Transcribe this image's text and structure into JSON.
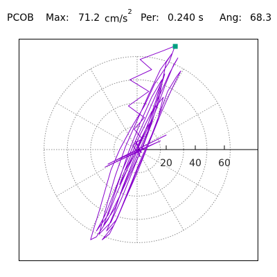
{
  "header": {
    "station": "PCOB",
    "max_label": "Max:",
    "max_value": "71.2",
    "max_unit_base": "cm/s",
    "max_unit_exp": "2",
    "per_label": "Per:",
    "per_value": "0.240 s",
    "ang_label": "Ang:",
    "ang_value": "68.3"
  },
  "chart_data": {
    "type": "scatter",
    "subtype": "polar particle-motion orbit",
    "title": "",
    "r_ticks": [
      20,
      40,
      60
    ],
    "r_tick_labels": [
      "20",
      "40",
      "60"
    ],
    "r_max": 80,
    "spoke_angles_deg": [
      0,
      30,
      60,
      90,
      120,
      150,
      180,
      210,
      240,
      270,
      300,
      330
    ],
    "grid": true,
    "peak_marker": {
      "x": 26,
      "y": 71.2,
      "color": "#00a080"
    },
    "colors": {
      "trace": "#8800cc",
      "grid": "#888888",
      "axis": "#000000"
    },
    "series": [
      {
        "color": "#8800cc",
        "points": [
          [
            0,
            0
          ],
          [
            3,
            8
          ],
          [
            -2,
            14
          ],
          [
            5,
            22
          ],
          [
            -6,
            30
          ],
          [
            8,
            40
          ],
          [
            -5,
            48
          ],
          [
            10,
            55
          ],
          [
            2,
            62
          ],
          [
            18,
            68
          ],
          [
            26,
            71.2
          ],
          [
            22,
            60
          ],
          [
            12,
            45
          ],
          [
            5,
            30
          ],
          [
            -4,
            15
          ],
          [
            -12,
            0
          ],
          [
            -18,
            -14
          ],
          [
            -22,
            -28
          ],
          [
            -26,
            -42
          ],
          [
            -30,
            -55
          ],
          [
            -32,
            -62
          ],
          [
            -28,
            -60
          ],
          [
            -20,
            -48
          ],
          [
            -12,
            -32
          ],
          [
            -4,
            -15
          ],
          [
            4,
            2
          ],
          [
            10,
            18
          ],
          [
            15,
            35
          ],
          [
            18,
            50
          ],
          [
            20,
            60
          ],
          [
            24,
            66
          ],
          [
            16,
            55
          ],
          [
            8,
            38
          ],
          [
            0,
            20
          ],
          [
            -8,
            2
          ],
          [
            -15,
            -18
          ],
          [
            -20,
            -35
          ],
          [
            -24,
            -50
          ],
          [
            -26,
            -58
          ],
          [
            -18,
            -50
          ],
          [
            -10,
            -32
          ],
          [
            -2,
            -12
          ],
          [
            6,
            8
          ],
          [
            12,
            28
          ],
          [
            16,
            42
          ],
          [
            19,
            52
          ],
          [
            14,
            40
          ],
          [
            6,
            22
          ],
          [
            -2,
            4
          ],
          [
            -10,
            -14
          ],
          [
            -16,
            -30
          ],
          [
            -22,
            -45
          ],
          [
            -28,
            -56
          ],
          [
            -20,
            -45
          ],
          [
            -14,
            -30
          ],
          [
            -6,
            -12
          ],
          [
            0,
            0
          ],
          [
            7,
            16
          ],
          [
            13,
            34
          ],
          [
            17,
            48
          ],
          [
            10,
            36
          ],
          [
            2,
            18
          ],
          [
            -6,
            -2
          ],
          [
            -12,
            -20
          ],
          [
            -18,
            -38
          ],
          [
            -23,
            -52
          ],
          [
            -15,
            -40
          ],
          [
            -8,
            -22
          ],
          [
            0,
            -4
          ],
          [
            8,
            14
          ],
          [
            14,
            30
          ],
          [
            20,
            46
          ],
          [
            25,
            58
          ],
          [
            28,
            63
          ],
          [
            22,
            52
          ],
          [
            14,
            34
          ],
          [
            6,
            14
          ],
          [
            -2,
            -6
          ],
          [
            -10,
            -26
          ],
          [
            -16,
            -44
          ],
          [
            -21,
            -56
          ],
          [
            -14,
            -48
          ],
          [
            -6,
            -28
          ],
          [
            2,
            -8
          ],
          [
            10,
            10
          ],
          [
            16,
            26
          ],
          [
            21,
            40
          ],
          [
            27,
            50
          ],
          [
            30,
            54
          ],
          [
            24,
            42
          ],
          [
            16,
            24
          ],
          [
            8,
            4
          ],
          [
            0,
            -16
          ],
          [
            -8,
            -34
          ],
          [
            -14,
            -48
          ],
          [
            -19,
            -58
          ],
          [
            -24,
            -62
          ],
          [
            -16,
            -52
          ],
          [
            -8,
            -34
          ],
          [
            0,
            -14
          ],
          [
            8,
            4
          ],
          [
            14,
            20
          ],
          [
            18,
            36
          ],
          [
            10,
            26
          ],
          [
            2,
            10
          ],
          [
            -6,
            -8
          ],
          [
            -12,
            -24
          ],
          [
            -6,
            -12
          ],
          [
            2,
            4
          ],
          [
            10,
            20
          ],
          [
            6,
            14
          ],
          [
            -2,
            -2
          ],
          [
            -8,
            -14
          ],
          [
            -2,
            -4
          ],
          [
            4,
            8
          ],
          [
            -3,
            3
          ],
          [
            2,
            -5
          ],
          [
            -1,
            6
          ],
          [
            3,
            -2
          ],
          [
            0,
            0
          ],
          [
            -20,
            -10
          ],
          [
            20,
            10
          ],
          [
            -16,
            -8
          ],
          [
            16,
            6
          ],
          [
            -22,
            -12
          ],
          [
            4,
            0
          ]
        ]
      }
    ]
  }
}
